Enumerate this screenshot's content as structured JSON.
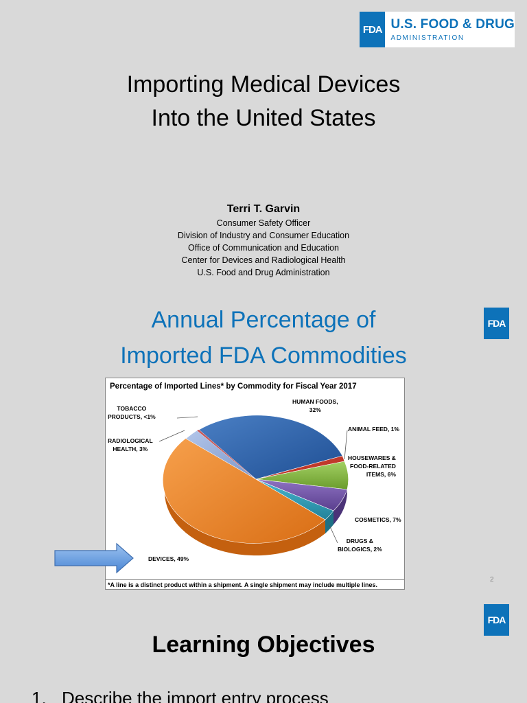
{
  "slide1": {
    "logo": {
      "badge": "FDA",
      "line1": "U.S. FOOD & DRUG",
      "line2": "ADMINISTRATION"
    },
    "title_line1": "Importing Medical Devices",
    "title_line2": "Into the United States",
    "presenter": {
      "name": "Terri T. Garvin",
      "roles": [
        "Consumer Safety Officer",
        "Division of Industry and Consumer Education",
        "Office of Communication and Education",
        "Center for Devices and Radiological Health",
        "U.S. Food and Drug Administration"
      ]
    }
  },
  "slide2": {
    "logo_badge": "FDA",
    "title_line1": "Annual Percentage of",
    "title_line2": "Imported FDA Commodities",
    "page_number": "2"
  },
  "chart_data": {
    "type": "pie",
    "title": "Percentage of Imported Lines* by Commodity for Fiscal Year 2017",
    "categories": [
      "HUMAN FOODS",
      "ANIMAL FEED",
      "HOUSEWARES & FOOD-RELATED ITEMS",
      "COSMETICS",
      "DRUGS & BIOLOGICS",
      "DEVICES",
      "RADIOLOGICAL HEALTH",
      "TOBACCO PRODUCTS"
    ],
    "values": [
      32,
      1,
      6,
      7,
      2,
      49,
      3,
      0.3
    ],
    "labels": {
      "human_foods": [
        "HUMAN FOODS,",
        "32%"
      ],
      "animal_feed": [
        "ANIMAL FEED, 1%"
      ],
      "housewares": [
        "HOUSEWARES &",
        "FOOD-RELATED",
        "ITEMS, 6%"
      ],
      "cosmetics": [
        "COSMETICS, 7%"
      ],
      "drugs": [
        "DRUGS &",
        "BIOLOGICS, 2%"
      ],
      "devices": [
        "DEVICES, 49%"
      ],
      "radiological": [
        "RADIOLOGICAL",
        "HEALTH, 3%"
      ],
      "tobacco": [
        "TOBACCO",
        "PRODUCTS, <1%"
      ]
    },
    "colors": [
      "#2e62a8",
      "#c0392b",
      "#7ab03a",
      "#6b4fa0",
      "#2b9bb5",
      "#f08a2c",
      "#8fa8d8",
      "#c85a5a"
    ],
    "footnote": "*A line is a distinct product within a shipment. A single shipment may include multiple lines."
  },
  "slide3": {
    "logo_badge": "FDA",
    "title": "Learning Objectives",
    "objectives": [
      {
        "num": "1.",
        "text": "Describe the import entry process"
      }
    ]
  }
}
